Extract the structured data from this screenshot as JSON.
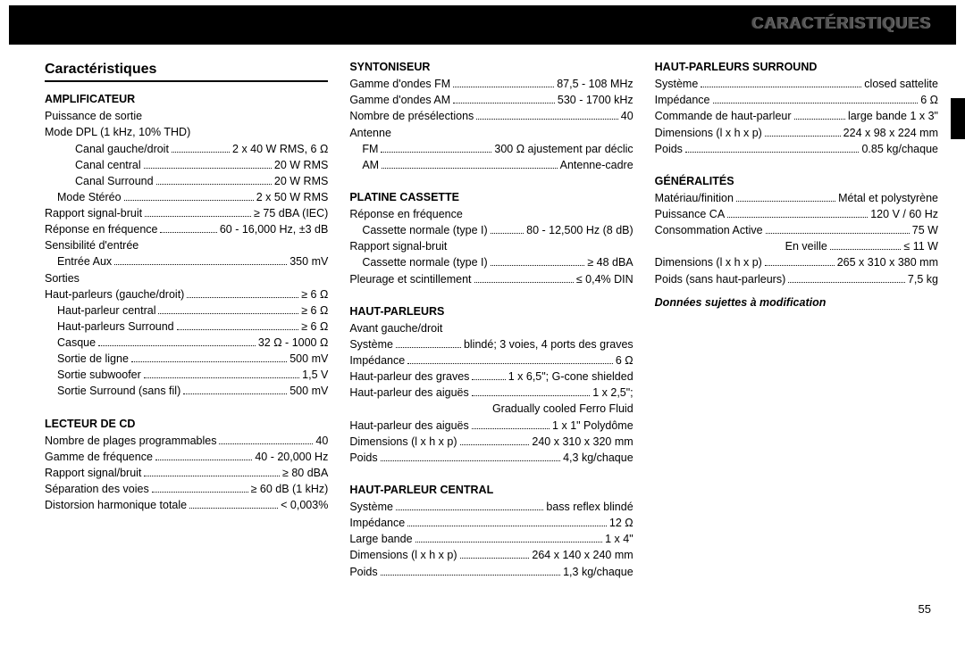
{
  "header": {
    "banner": "CARACTÉRISTIQUES"
  },
  "title": "Caractéristiques",
  "pagenum": "55",
  "col1": {
    "amp": {
      "h": "AMPLIFICATEUR",
      "power_out": "Puissance de sortie",
      "mode_dpl": "Mode DPL (1 kHz, 10% THD)",
      "dpl_rows": [
        {
          "l": "Canal gauche/droit",
          "v": "2 x 40 W RMS, 6 Ω",
          "indent": 2
        },
        {
          "l": "Canal central",
          "v": "20 W RMS",
          "indent": 2
        },
        {
          "l": "Canal Surround",
          "v": "20 W RMS",
          "indent": 2
        }
      ],
      "rows1": [
        {
          "l": "Mode Stéréo",
          "v": "2 x 50 W RMS",
          "indent": 1
        },
        {
          "l": "Rapport signal-bruit",
          "v": "≥ 75 dBA (IEC)",
          "indent": 0
        },
        {
          "l": "Réponse en fréquence",
          "v": "60 - 16,000 Hz, ±3 dB",
          "indent": 0
        }
      ],
      "sens": "Sensibilité d'entrée",
      "sens_rows": [
        {
          "l": "Entrée Aux",
          "v": "350 mV",
          "indent": 1
        }
      ],
      "outs": "Sorties",
      "outs_rows": [
        {
          "l": "Haut-parleurs (gauche/droit)",
          "v": "≥ 6 Ω",
          "indent": 0
        },
        {
          "l": "Haut-parleur central",
          "v": "≥ 6 Ω",
          "indent": 1
        },
        {
          "l": "Haut-parleurs Surround",
          "v": "≥ 6 Ω",
          "indent": 1
        },
        {
          "l": "Casque",
          "v": "32 Ω - 1000 Ω",
          "indent": 1
        },
        {
          "l": "Sortie de ligne",
          "v": "500 mV",
          "indent": 1
        },
        {
          "l": "Sortie subwoofer",
          "v": "1,5 V",
          "indent": 1
        },
        {
          "l": "Sortie Surround (sans fil)",
          "v": "500 mV",
          "indent": 1
        }
      ]
    },
    "cd": {
      "h": "LECTEUR DE CD",
      "rows": [
        {
          "l": "Nombre de plages programmables",
          "v": "40"
        },
        {
          "l": "Gamme de fréquence",
          "v": "40 - 20,000 Hz"
        },
        {
          "l": "Rapport signal/bruit",
          "v": "≥ 80 dBA"
        },
        {
          "l": "Séparation des voies",
          "v": "≥ 60 dB (1 kHz)"
        },
        {
          "l": "Distorsion harmonique totale",
          "v": "< 0,003%"
        }
      ]
    }
  },
  "col2": {
    "tuner": {
      "h": "SYNTONISEUR",
      "rows1": [
        {
          "l": "Gamme d'ondes FM",
          "v": "87,5 - 108 MHz"
        },
        {
          "l": "Gamme d'ondes AM",
          "v": "530 - 1700 kHz"
        },
        {
          "l": "Nombre de présélections",
          "v": "40"
        }
      ],
      "ant": "Antenne",
      "rows2": [
        {
          "l": "FM",
          "v": "300 Ω ajustement par déclic",
          "indent": 1
        },
        {
          "l": "AM",
          "v": "Antenne-cadre",
          "indent": 1
        }
      ]
    },
    "cassette": {
      "h": "PLATINE CASSETTE",
      "freq": "Réponse en fréquence",
      "r1": [
        {
          "l": "Cassette normale (type I)",
          "v": "80 - 12,500 Hz (8 dB)",
          "indent": 1
        }
      ],
      "snr": "Rapport signal-bruit",
      "r2": [
        {
          "l": "Cassette normale (type I)",
          "v": "≥ 48 dBA",
          "indent": 1
        },
        {
          "l": "Pleurage et scintillement",
          "v": "≤ 0,4% DIN",
          "indent": 0
        }
      ]
    },
    "hp": {
      "h": "HAUT-PARLEURS",
      "front": "Avant gauche/droit",
      "rows": [
        {
          "l": "Système",
          "v": "blindé; 3 voies, 4 ports des graves"
        },
        {
          "l": "Impédance",
          "v": "6 Ω"
        },
        {
          "l": "Haut-parleur des graves",
          "v": "1 x 6,5\"; G-cone shielded"
        },
        {
          "l": "Haut-parleur des aiguës",
          "v": "1 x 2,5\";"
        },
        {
          "l": "",
          "v": "Gradually cooled Ferro Fluid"
        },
        {
          "l": "Haut-parleur des aiguës",
          "v": "1 x 1\" Polydôme"
        },
        {
          "l": "Dimensions (l x h x p)",
          "v": "240 x 310 x 320 mm"
        },
        {
          "l": "Poids",
          "v": "4,3 kg/chaque"
        }
      ]
    },
    "hpc": {
      "h": "HAUT-PARLEUR CENTRAL",
      "rows": [
        {
          "l": "Système",
          "v": "bass reflex blindé"
        },
        {
          "l": "Impédance",
          "v": "12 Ω"
        },
        {
          "l": "Large bande",
          "v": "1 x 4\""
        },
        {
          "l": "Dimensions (l x h x p)",
          "v": "264 x 140 x 240 mm"
        },
        {
          "l": "Poids",
          "v": "1,3 kg/chaque"
        }
      ]
    }
  },
  "col3": {
    "surr": {
      "h": "HAUT-PARLEURS SURROUND",
      "rows": [
        {
          "l": "Système",
          "v": "closed sattelite"
        },
        {
          "l": "Impédance",
          "v": "6 Ω"
        },
        {
          "l": "Commande de haut-parleur",
          "v": "large bande 1 x 3\""
        },
        {
          "l": "Dimensions (l x h x p)",
          "v": "224 x 98 x 224 mm"
        },
        {
          "l": "Poids",
          "v": "0.85 kg/chaque"
        }
      ]
    },
    "gen": {
      "h": "GÉNÉRALITÉS",
      "rows": [
        {
          "l": "Matériau/finition",
          "v": "Métal et polystyrène"
        },
        {
          "l": "Puissance CA",
          "v": "120 V / 60 Hz"
        },
        {
          "l": "Consommation   Active",
          "v": "75 W"
        },
        {
          "l": "En veille",
          "v": "≤ 11 W",
          "right_label": true
        },
        {
          "l": "Dimensions (l x h x p)",
          "v": "265 x 310 x 380 mm"
        },
        {
          "l": "Poids (sans haut-parleurs)",
          "v": "7,5 kg"
        }
      ]
    },
    "disclaimer": "Données sujettes à modification"
  }
}
